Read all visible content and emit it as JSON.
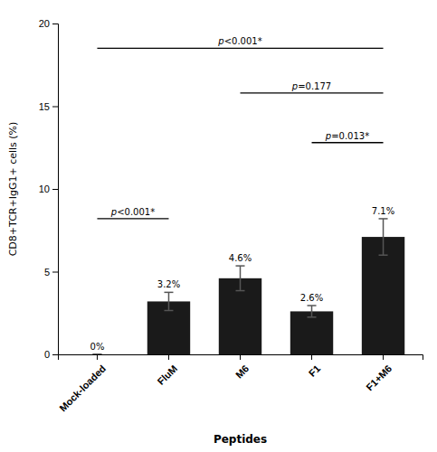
{
  "chart_data": {
    "type": "bar",
    "categories": [
      "Mock-loaded",
      "FluM",
      "M6",
      "F1",
      "F1+M6"
    ],
    "values": [
      0.0,
      3.2,
      4.6,
      2.6,
      7.1
    ],
    "errors": [
      0.0,
      0.55,
      0.75,
      0.35,
      1.1
    ],
    "value_labels": [
      "0%",
      "3.2%",
      "4.6%",
      "2.6%",
      "7.1%"
    ],
    "data_labels": true,
    "color": "#1a1a1a",
    "xlabel": "Peptides",
    "ylabel": "CD8+TCR+IgG1+ cells (%)",
    "ylim": [
      0,
      20
    ],
    "yticks": [
      0,
      5,
      10,
      15,
      20
    ],
    "annotations": [
      {
        "text": "p<0.001*",
        "x": [
          "Mock-loaded",
          "F1+M6"
        ],
        "y": 18.5
      },
      {
        "text": "p=0.177",
        "x": [
          "M6",
          "F1+M6"
        ],
        "y": 15.8
      },
      {
        "text": "p=0.013*",
        "x": [
          "F1",
          "F1+M6"
        ],
        "y": 12.8
      },
      {
        "text": "p<0.001*",
        "x": [
          "Mock-loaded",
          "FluM"
        ],
        "y": 8.2
      }
    ]
  }
}
